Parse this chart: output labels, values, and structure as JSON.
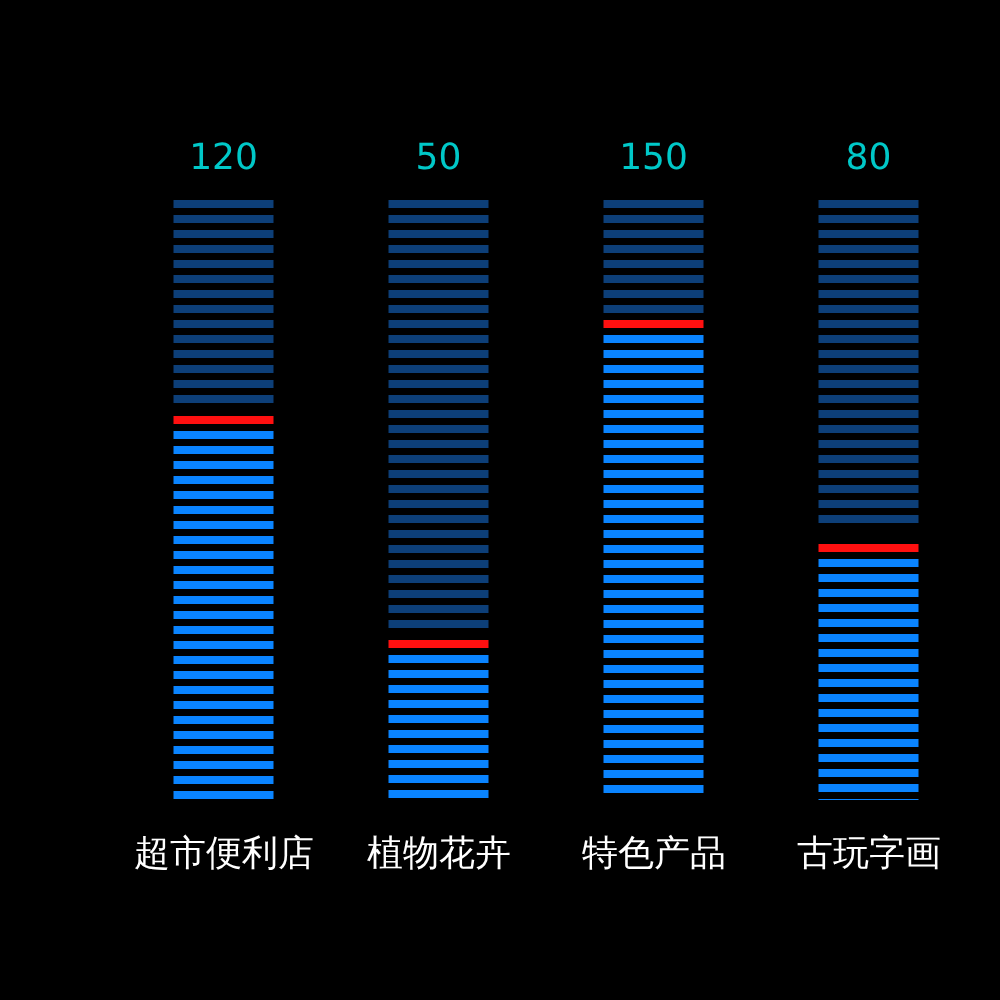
{
  "chart_data": {
    "type": "bar",
    "categories": [
      "超市便利店",
      "植物花卉",
      "特色产品",
      "古玩字画"
    ],
    "values": [
      120,
      50,
      150,
      80
    ],
    "color": "#0a84ff",
    "data_labels": true
  }
}
